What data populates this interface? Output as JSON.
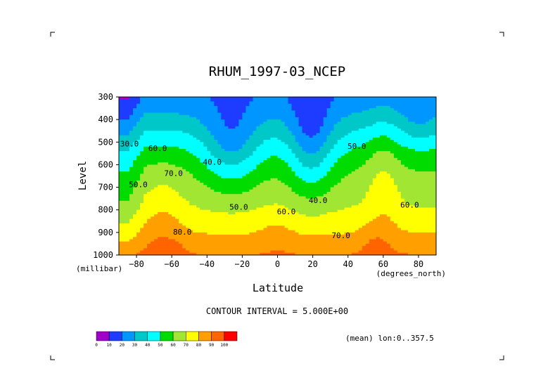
{
  "chart_data": {
    "type": "contour",
    "title": "RHUM_1997-03_NCEP",
    "xlabel": "Latitude",
    "ylabel": "Level",
    "x_units": "(degrees_north)",
    "y_units": "(millibar)",
    "xlim": [
      -90,
      90
    ],
    "ylim": [
      1000,
      300
    ],
    "x_ticks": [
      -80,
      -60,
      -40,
      -20,
      0,
      20,
      40,
      60,
      80
    ],
    "y_ticks": [
      300,
      400,
      500,
      600,
      700,
      800,
      900,
      1000
    ],
    "contour_interval_text": "CONTOUR INTERVAL = 5.000E+00",
    "mean_text": "(mean) lon:0..357.5",
    "contour_labels": [
      {
        "text": "30.0",
        "x": -84,
        "y": 520
      },
      {
        "text": "60.0",
        "x": -68,
        "y": 540
      },
      {
        "text": "50.0",
        "x": -79,
        "y": 700
      },
      {
        "text": "70.0",
        "x": -59,
        "y": 650
      },
      {
        "text": "40.0",
        "x": -37,
        "y": 600
      },
      {
        "text": "50.0",
        "x": -22,
        "y": 800
      },
      {
        "text": "80.0",
        "x": -54,
        "y": 910
      },
      {
        "text": "60.0",
        "x": 5,
        "y": 820
      },
      {
        "text": "40.0",
        "x": 23,
        "y": 770
      },
      {
        "text": "70.0",
        "x": 36,
        "y": 925
      },
      {
        "text": "50.0",
        "x": 45,
        "y": 530
      },
      {
        "text": "60.0",
        "x": 75,
        "y": 790
      }
    ],
    "colorbar": {
      "labels": [
        "0",
        "10",
        "20",
        "30",
        "40",
        "50",
        "60",
        "70",
        "80",
        "90",
        "100"
      ],
      "colors": [
        "#a000c8",
        "#1e3cff",
        "#0096ff",
        "#00c8c8",
        "#00ffff",
        "#00dc00",
        "#a0e632",
        "#ffff00",
        "#ffa000",
        "#ff6400",
        "#ff0000"
      ]
    }
  }
}
